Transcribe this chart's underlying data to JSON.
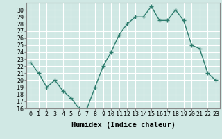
{
  "title": "",
  "xlabel": "Humidex (Indice chaleur)",
  "ylabel": "",
  "x": [
    0,
    1,
    2,
    3,
    4,
    5,
    6,
    7,
    8,
    9,
    10,
    11,
    12,
    13,
    14,
    15,
    16,
    17,
    18,
    19,
    20,
    21,
    22,
    23
  ],
  "y": [
    22.5,
    21,
    19,
    20,
    18.5,
    17.5,
    16,
    16,
    19,
    22,
    24,
    26.5,
    28,
    29,
    29,
    30.5,
    28.5,
    28.5,
    30,
    28.5,
    25,
    24.5,
    21,
    20
  ],
  "line_color": "#2e7d6e",
  "marker": "+",
  "marker_size": 4,
  "bg_color": "#d0e8e4",
  "grid_color": "#ffffff",
  "ylim": [
    16,
    31
  ],
  "yticks": [
    16,
    17,
    18,
    19,
    20,
    21,
    22,
    23,
    24,
    25,
    26,
    27,
    28,
    29,
    30
  ],
  "tick_fontsize": 6,
  "label_fontsize": 7.5
}
